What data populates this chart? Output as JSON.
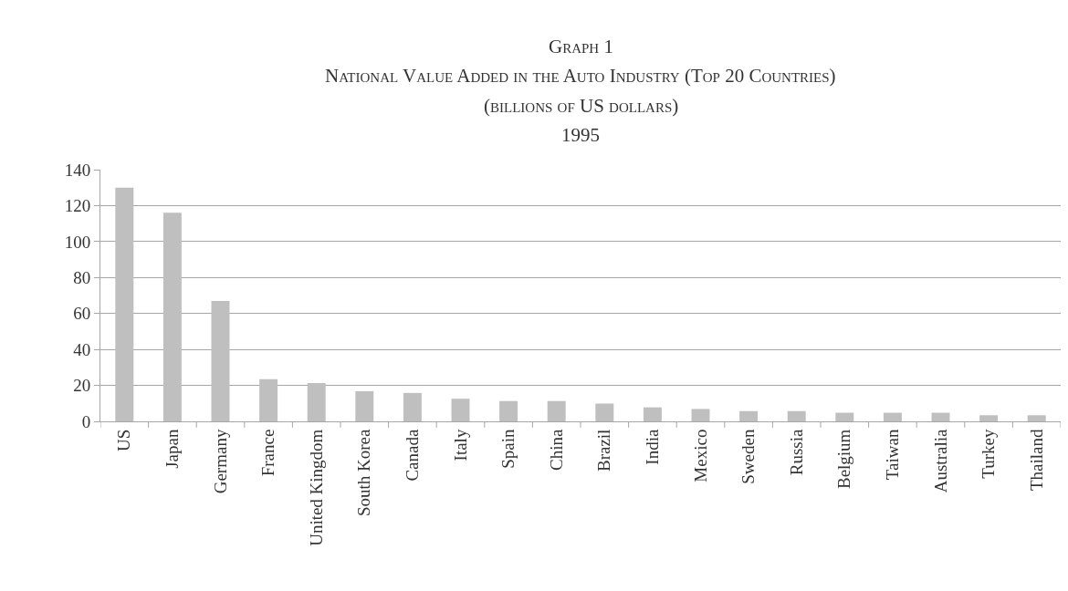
{
  "chart_data": {
    "type": "bar",
    "title": "Graph 1\nNational Value Added in the Auto Industry (Top 20 Countries)",
    "subtitle": "(billions of US dollars)",
    "annotations": [
      "1995"
    ],
    "categories": [
      "US",
      "Japan",
      "Germany",
      "France",
      "United Kingdom",
      "South Korea",
      "Canada",
      "Italy",
      "Spain",
      "China",
      "Brazil",
      "India",
      "Mexico",
      "Sweden",
      "Russia",
      "Belgium",
      "Taiwan",
      "Australia",
      "Turkey",
      "Thailand"
    ],
    "values": [
      130,
      116,
      67,
      23.4,
      21.3,
      16.8,
      15.8,
      12.6,
      11.3,
      11.3,
      9.9,
      7.8,
      6.9,
      5.7,
      5.7,
      4.8,
      4.8,
      4.8,
      3.4,
      3.4
    ],
    "color": "#bfbfbf",
    "ylim": [
      0,
      140
    ],
    "yticks": [
      0,
      20,
      40,
      60,
      80,
      100,
      120,
      140
    ],
    "grid": "y",
    "legend": false
  }
}
